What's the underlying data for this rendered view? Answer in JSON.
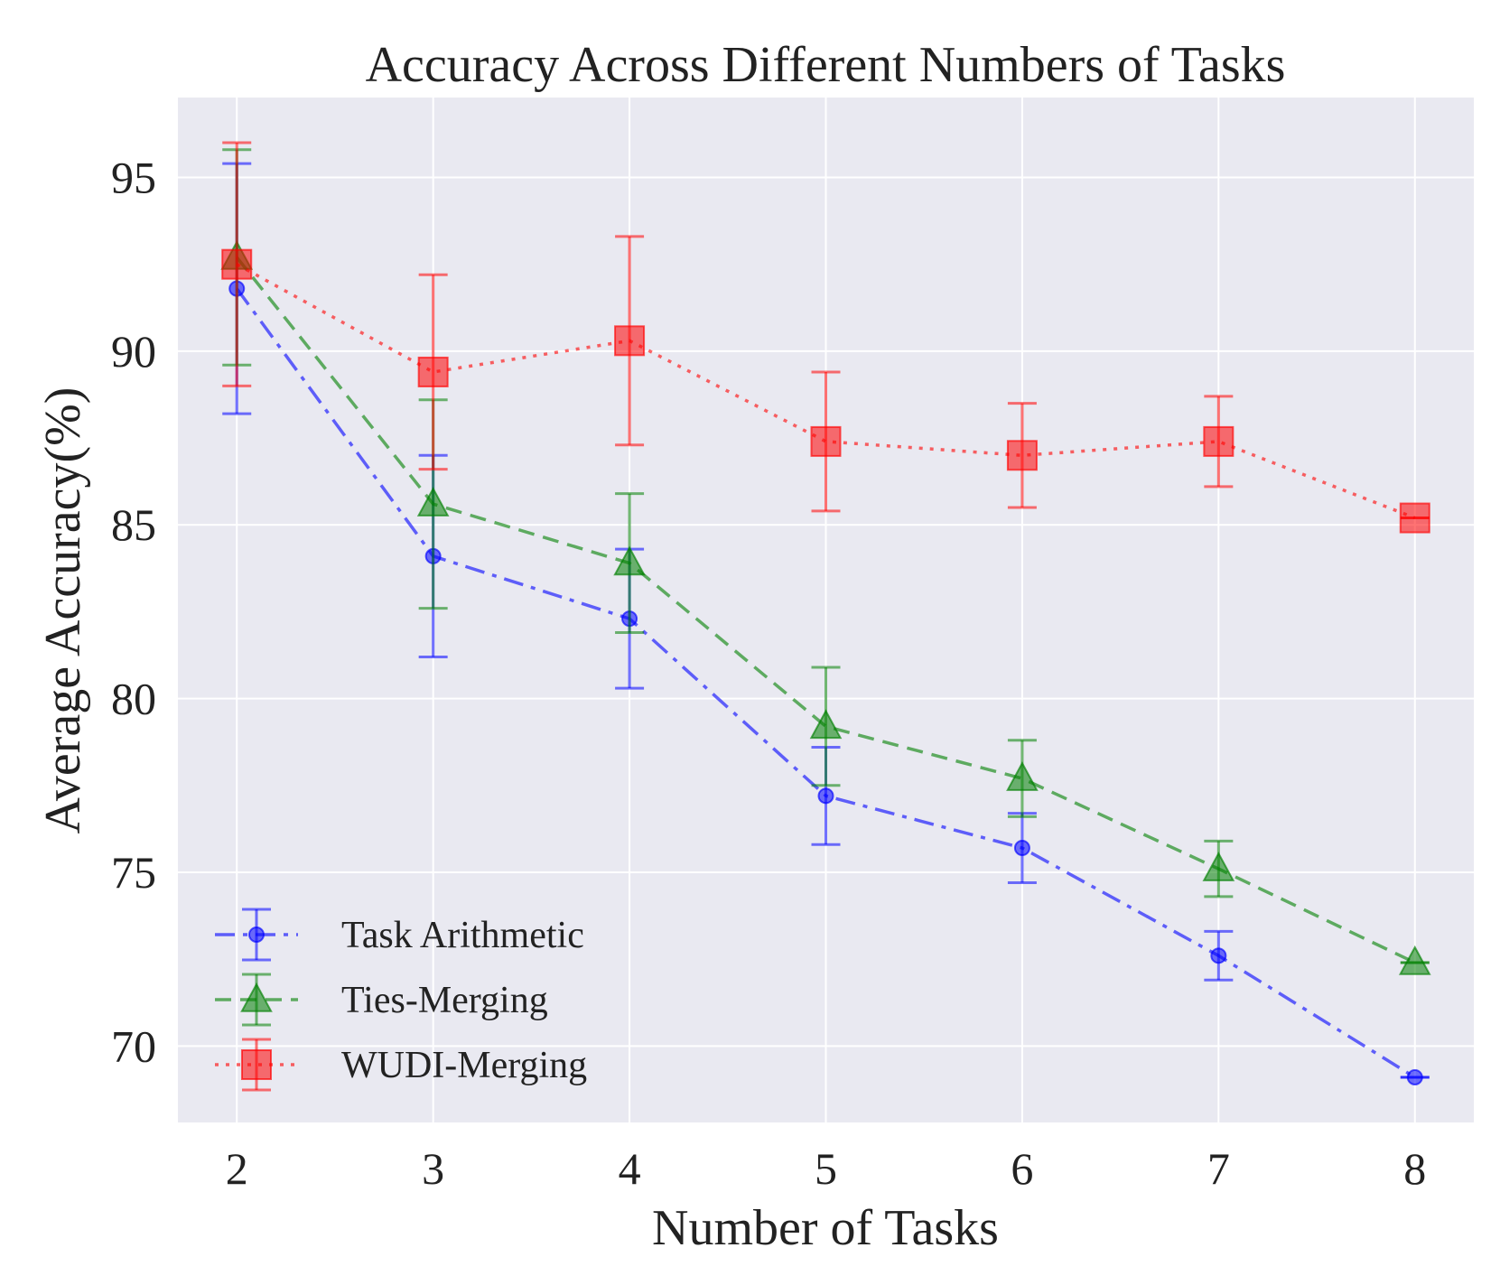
{
  "chart_data": {
    "type": "line",
    "title": "Accuracy Across Different Numbers of Tasks",
    "xlabel": "Number of Tasks",
    "ylabel": "Average Accuracy(%)",
    "x": [
      2,
      3,
      4,
      5,
      6,
      7,
      8
    ],
    "xlim": [
      1.7,
      8.3
    ],
    "ylim": [
      67.8,
      97.3
    ],
    "xticks": [
      2,
      3,
      4,
      5,
      6,
      7,
      8
    ],
    "yticks": [
      70,
      75,
      80,
      85,
      90,
      95
    ],
    "grid": true,
    "legend_position": "bottom-left",
    "series": [
      {
        "name": "Task Arithmetic",
        "color": "#0000ff",
        "marker": "circle",
        "line_style": "dash-dot",
        "values": [
          91.8,
          84.1,
          82.3,
          77.2,
          75.7,
          72.6,
          69.1
        ],
        "error": [
          3.6,
          2.9,
          2.0,
          1.4,
          1.0,
          0.7,
          0.0
        ]
      },
      {
        "name": "Ties-Merging",
        "color": "#008000",
        "marker": "triangle",
        "line_style": "dashed",
        "values": [
          92.7,
          85.6,
          83.9,
          79.2,
          77.7,
          75.1,
          72.4
        ],
        "error": [
          3.1,
          3.0,
          2.0,
          1.7,
          1.1,
          0.8,
          0.0
        ]
      },
      {
        "name": "WUDI-Merging",
        "color": "#ff0000",
        "marker": "square",
        "line_style": "dotted",
        "values": [
          92.5,
          89.4,
          90.3,
          87.4,
          87.0,
          87.4,
          85.2
        ],
        "error": [
          3.5,
          2.8,
          3.0,
          2.0,
          1.5,
          1.3,
          0.0
        ]
      }
    ]
  }
}
